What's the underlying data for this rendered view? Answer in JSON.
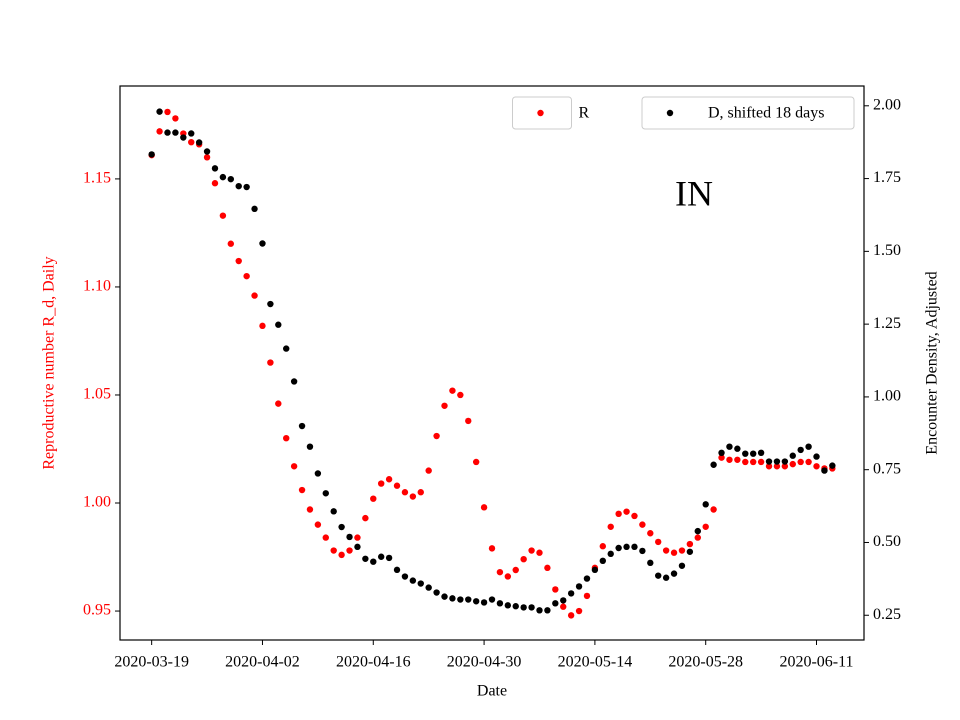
{
  "chart_data": {
    "type": "scatter",
    "xlabel": "Date",
    "ylabel": "Reproductive number R_d, Daily",
    "y2label": "Encounter Density, Adjusted",
    "annotation": "IN",
    "x": [
      "2020-03-19",
      "2020-03-20",
      "2020-03-21",
      "2020-03-22",
      "2020-03-23",
      "2020-03-24",
      "2020-03-25",
      "2020-03-26",
      "2020-03-27",
      "2020-03-28",
      "2020-03-29",
      "2020-03-30",
      "2020-03-31",
      "2020-04-01",
      "2020-04-02",
      "2020-04-03",
      "2020-04-04",
      "2020-04-05",
      "2020-04-06",
      "2020-04-07",
      "2020-04-08",
      "2020-04-09",
      "2020-04-10",
      "2020-04-11",
      "2020-04-12",
      "2020-04-13",
      "2020-04-14",
      "2020-04-15",
      "2020-04-16",
      "2020-04-17",
      "2020-04-18",
      "2020-04-19",
      "2020-04-20",
      "2020-04-21",
      "2020-04-22",
      "2020-04-23",
      "2020-04-24",
      "2020-04-25",
      "2020-04-26",
      "2020-04-27",
      "2020-04-28",
      "2020-04-29",
      "2020-04-30",
      "2020-05-01",
      "2020-05-02",
      "2020-05-03",
      "2020-05-04",
      "2020-05-05",
      "2020-05-06",
      "2020-05-07",
      "2020-05-08",
      "2020-05-09",
      "2020-05-10",
      "2020-05-11",
      "2020-05-12",
      "2020-05-13",
      "2020-05-14",
      "2020-05-15",
      "2020-05-16",
      "2020-05-17",
      "2020-05-18",
      "2020-05-19",
      "2020-05-20",
      "2020-05-21",
      "2020-05-22",
      "2020-05-23",
      "2020-05-24",
      "2020-05-25",
      "2020-05-26",
      "2020-05-27",
      "2020-05-28",
      "2020-05-29",
      "2020-05-30",
      "2020-05-31",
      "2020-06-01",
      "2020-06-02",
      "2020-06-03",
      "2020-06-04",
      "2020-06-05",
      "2020-06-06",
      "2020-06-07",
      "2020-06-08",
      "2020-06-09",
      "2020-06-10",
      "2020-06-11",
      "2020-06-12",
      "2020-06-13"
    ],
    "series": [
      {
        "name": "R",
        "color": "#ff0000",
        "axis": "y",
        "legend": "upper center",
        "values": [
          1.161,
          1.172,
          1.181,
          1.178,
          1.171,
          1.167,
          1.166,
          1.16,
          1.148,
          1.133,
          1.12,
          1.112,
          1.105,
          1.096,
          1.082,
          1.065,
          1.046,
          1.03,
          1.017,
          1.006,
          0.997,
          0.99,
          0.984,
          0.978,
          0.976,
          0.978,
          0.984,
          0.993,
          1.002,
          1.009,
          1.011,
          1.008,
          1.005,
          1.003,
          1.005,
          1.015,
          1.031,
          1.045,
          1.052,
          1.05,
          1.038,
          1.019,
          0.998,
          0.979,
          0.968,
          0.966,
          0.969,
          0.974,
          0.978,
          0.977,
          0.97,
          0.96,
          0.952,
          0.948,
          0.95,
          0.957,
          0.97,
          0.98,
          0.989,
          0.995,
          0.996,
          0.994,
          0.99,
          0.986,
          0.982,
          0.978,
          0.977,
          0.978,
          0.981,
          0.984,
          0.989,
          0.997,
          1.021,
          1.02,
          1.02,
          1.019,
          1.019,
          1.019,
          1.017,
          1.017,
          1.017,
          1.018,
          1.019,
          1.019,
          1.017,
          1.016,
          1.016
        ]
      },
      {
        "name": "D, shifted 18 days",
        "color": "#000000",
        "axis": "y2",
        "legend": "upper right",
        "values": [
          1.833,
          1.98,
          1.908,
          1.908,
          1.891,
          1.905,
          1.874,
          1.843,
          1.785,
          1.755,
          1.748,
          1.724,
          1.721,
          1.646,
          1.527,
          1.319,
          1.248,
          1.166,
          1.053,
          0.9,
          0.829,
          0.737,
          0.669,
          0.607,
          0.553,
          0.519,
          0.485,
          0.444,
          0.434,
          0.451,
          0.447,
          0.406,
          0.383,
          0.369,
          0.359,
          0.345,
          0.328,
          0.314,
          0.308,
          0.304,
          0.304,
          0.298,
          0.294,
          0.304,
          0.291,
          0.284,
          0.281,
          0.277,
          0.277,
          0.267,
          0.267,
          0.291,
          0.301,
          0.325,
          0.349,
          0.376,
          0.406,
          0.437,
          0.461,
          0.481,
          0.485,
          0.485,
          0.471,
          0.43,
          0.386,
          0.379,
          0.393,
          0.42,
          0.468,
          0.539,
          0.631,
          0.767,
          0.808,
          0.829,
          0.822,
          0.805,
          0.805,
          0.808,
          0.778,
          0.778,
          0.778,
          0.798,
          0.818,
          0.829,
          0.795,
          0.747,
          0.764
        ]
      }
    ],
    "xlim": [
      "2020-03-15",
      "2020-06-17"
    ],
    "xticks": [
      "2020-03-19",
      "2020-04-02",
      "2020-04-16",
      "2020-04-30",
      "2020-05-14",
      "2020-05-28",
      "2020-06-11"
    ],
    "ylim": [
      0.9366,
      1.193
    ],
    "yticks": [
      0.95,
      {
        "value": 1,
        "label": "1.00"
      },
      1.05,
      {
        "value": 1.1,
        "label": "1.10"
      },
      1.15
    ],
    "y2lim": [
      0.165,
      2.068
    ],
    "y2ticks": [
      0.25,
      {
        "value": 0.5,
        "label": "0.50"
      },
      0.75,
      {
        "value": 1,
        "label": "1.00"
      },
      1.25,
      {
        "value": 1.5,
        "label": "1.50"
      },
      1.75,
      {
        "value": 2,
        "label": "2.00"
      }
    ],
    "ylabel_color": "#ff0000"
  }
}
